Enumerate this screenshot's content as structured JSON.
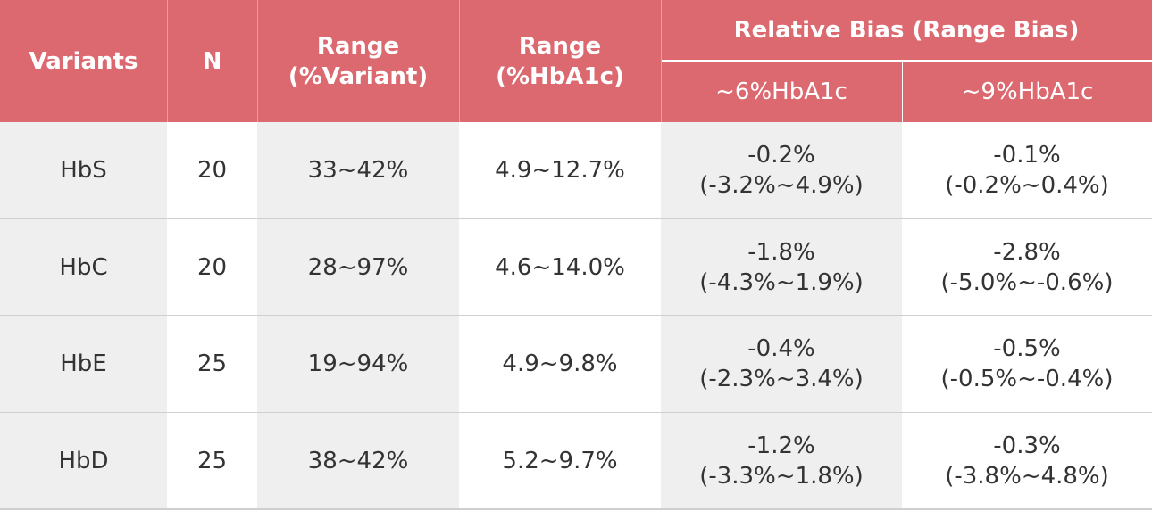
{
  "header": {
    "variants": "Variants",
    "n": "N",
    "range_variant": [
      "Range",
      "(%Variant)"
    ],
    "range_hba1c": [
      "Range",
      "(%HbA1c)"
    ],
    "relative_bias": "Relative Bias (Range Bias)",
    "sub": [
      "~6%HbA1c",
      "~9%HbA1c"
    ]
  },
  "rows": [
    {
      "variant": "HbS",
      "n": 20,
      "range_variant": "33~42%",
      "range_hba1c": "4.9~12.7%",
      "bias6": [
        "-0.2%",
        "(-3.2%~4.9%)"
      ],
      "bias9": [
        "-0.1%",
        "(-0.2%~0.4%)"
      ]
    },
    {
      "variant": "HbC",
      "n": 20,
      "range_variant": "28~97%",
      "range_hba1c": "4.6~14.0%",
      "bias6": [
        "-1.8%",
        "(-4.3%~1.9%)"
      ],
      "bias9": [
        "-2.8%",
        "(-5.0%~-0.6%)"
      ]
    },
    {
      "variant": "HbE",
      "n": 25,
      "range_variant": "19~94%",
      "range_hba1c": "4.9~9.8%",
      "bias6": [
        "-0.4%",
        "(-2.3%~3.4%)"
      ],
      "bias9": [
        "-0.5%",
        "(-0.5%~-0.4%)"
      ]
    },
    {
      "variant": "HbD",
      "n": 25,
      "range_variant": "38~42%",
      "range_hba1c": "5.2~9.7%",
      "bias6": [
        "-1.2%",
        "(-3.3%~1.8%)"
      ],
      "bias9": [
        "-0.3%",
        "(-3.8%~4.8%)"
      ]
    }
  ]
}
